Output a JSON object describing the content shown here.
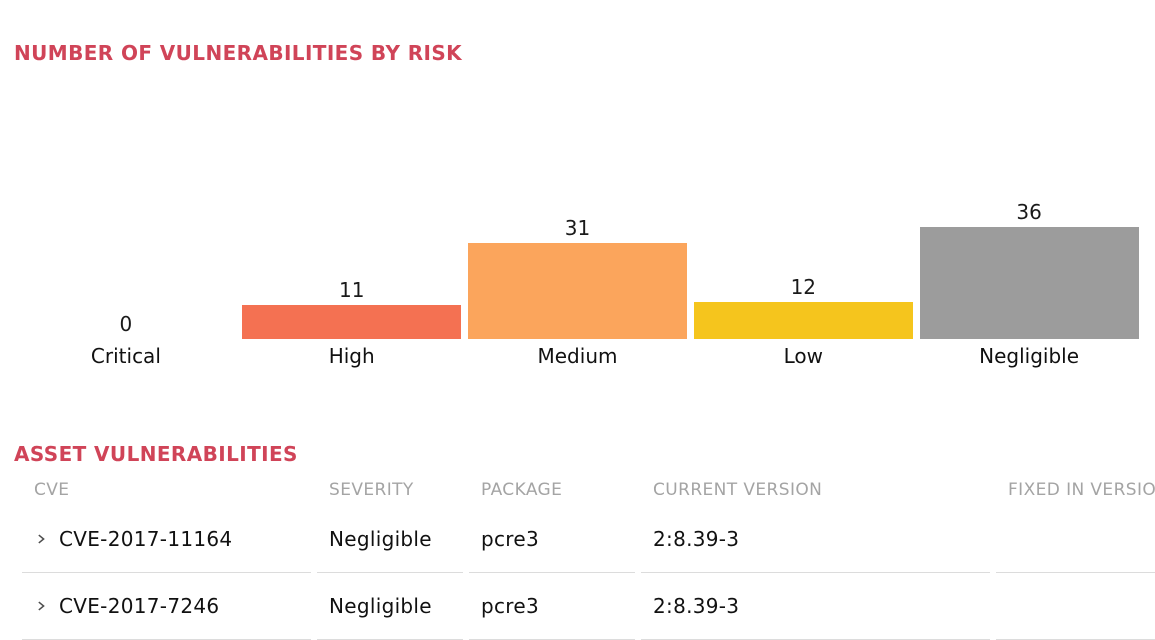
{
  "page": {
    "background_color": "#ffffff",
    "heading_color": "#d04458"
  },
  "risk_section": {
    "title": "NUMBER OF VULNERABILITIES BY RISK"
  },
  "chart_data": {
    "type": "bar",
    "title": "NUMBER OF VULNERABILITIES BY RISK",
    "categories": [
      "Critical",
      "High",
      "Medium",
      "Low",
      "Negligible"
    ],
    "values": [
      0,
      11,
      31,
      12,
      36
    ],
    "bar_colors": [
      null,
      "#f47152",
      "#fba55c",
      "#f5c51d",
      "#9c9c9c"
    ],
    "value_labels": [
      "0",
      "11",
      "31",
      "12",
      "36"
    ],
    "xlabel": "",
    "ylabel": "",
    "ylim": [
      0,
      40
    ],
    "grid": false,
    "legend": false,
    "value_label_color": "#1a1a1a",
    "category_label_color": "#111111"
  },
  "asset_table": {
    "title": "ASSET VULNERABILITIES",
    "header_color": "#a4a4a4",
    "row_expander_icon": "chevron-right",
    "columns": [
      "CVE",
      "SEVERITY",
      "PACKAGE",
      "CURRENT VERSION",
      "FIXED IN VERSION"
    ],
    "rows": [
      {
        "cve": "CVE-2017-11164",
        "severity": "Negligible",
        "package": "pcre3",
        "current_version": "2:8.39-3",
        "fixed_in_version": ""
      },
      {
        "cve": "CVE-2017-7246",
        "severity": "Negligible",
        "package": "pcre3",
        "current_version": "2:8.39-3",
        "fixed_in_version": ""
      }
    ]
  }
}
